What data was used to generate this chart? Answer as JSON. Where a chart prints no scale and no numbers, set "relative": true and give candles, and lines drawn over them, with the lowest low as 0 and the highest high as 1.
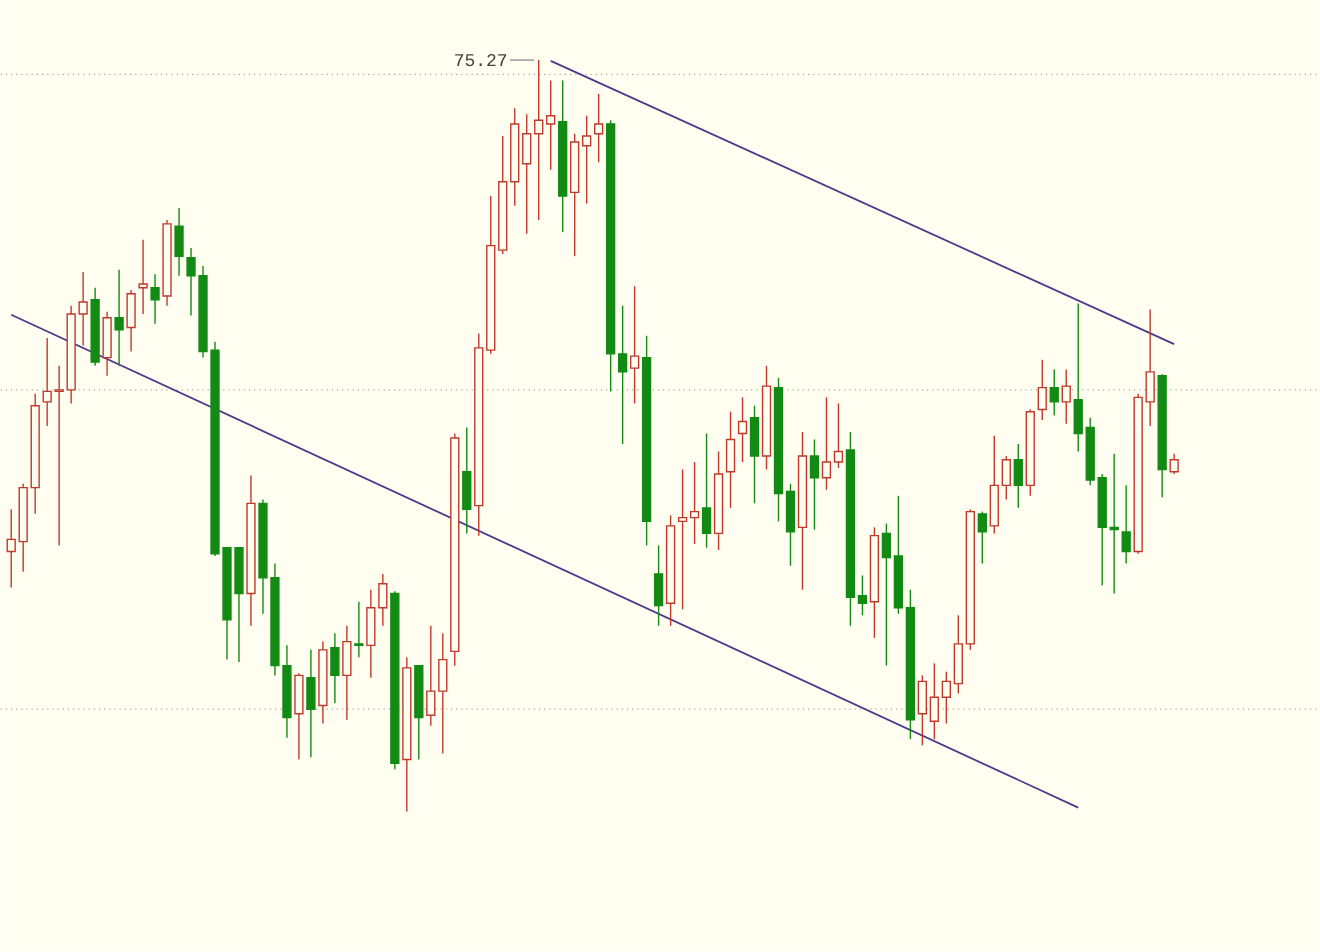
{
  "chart_data": {
    "type": "candlestick",
    "relative": true,
    "categories": [
      null,
      null,
      null,
      null,
      null,
      null,
      null,
      null,
      null,
      null,
      null,
      null,
      null,
      null,
      null,
      null,
      null,
      null,
      null,
      null,
      null,
      null,
      null,
      null,
      null,
      null,
      null,
      null,
      null,
      null,
      null,
      null,
      null,
      null,
      null,
      null,
      null,
      null,
      null,
      null,
      null,
      null,
      null,
      null,
      null,
      null,
      null,
      null,
      null,
      null,
      null,
      null,
      null,
      null,
      null,
      null,
      null,
      null,
      null,
      null,
      null,
      null,
      null,
      null,
      null,
      null,
      null,
      null,
      null,
      null,
      null,
      null,
      null,
      null,
      null,
      null,
      null,
      null,
      null,
      null,
      null,
      null,
      null,
      null,
      null,
      null,
      null,
      null,
      null,
      null,
      null,
      null,
      null,
      null,
      null,
      null,
      null,
      null
    ],
    "ohlc": [
      [
        0.346,
        0.402,
        0.298,
        0.362
      ],
      [
        0.359,
        0.436,
        0.319,
        0.431
      ],
      [
        0.431,
        0.556,
        0.396,
        0.54
      ],
      [
        0.545,
        0.63,
        0.513,
        0.559
      ],
      [
        0.559,
        0.593,
        0.354,
        0.561
      ],
      [
        0.561,
        0.673,
        0.543,
        0.662
      ],
      [
        0.662,
        0.718,
        0.62,
        0.678
      ],
      [
        0.681,
        0.697,
        0.593,
        0.598
      ],
      [
        0.604,
        0.665,
        0.58,
        0.657
      ],
      [
        0.657,
        0.721,
        0.593,
        0.641
      ],
      [
        0.644,
        0.694,
        0.612,
        0.689
      ],
      [
        0.697,
        0.761,
        0.662,
        0.702
      ],
      [
        0.697,
        0.715,
        0.649,
        0.681
      ],
      [
        0.686,
        0.787,
        0.673,
        0.782
      ],
      [
        0.779,
        0.803,
        0.713,
        0.739
      ],
      [
        0.737,
        0.75,
        0.66,
        0.713
      ],
      [
        0.713,
        0.726,
        0.604,
        0.612
      ],
      [
        0.614,
        0.625,
        0.34,
        0.343
      ],
      [
        0.351,
        0.351,
        0.202,
        0.255
      ],
      [
        0.351,
        0.351,
        0.199,
        0.29
      ],
      [
        0.29,
        0.447,
        0.247,
        0.41
      ],
      [
        0.41,
        0.415,
        0.263,
        0.311
      ],
      [
        0.311,
        0.33,
        0.181,
        0.194
      ],
      [
        0.194,
        0.221,
        0.098,
        0.125
      ],
      [
        0.13,
        0.184,
        0.069,
        0.181
      ],
      [
        0.178,
        0.215,
        0.072,
        0.136
      ],
      [
        0.141,
        0.226,
        0.117,
        0.215
      ],
      [
        0.218,
        0.237,
        0.144,
        0.181
      ],
      [
        0.181,
        0.247,
        0.122,
        0.226
      ],
      [
        0.223,
        0.279,
        0.205,
        0.221
      ],
      [
        0.221,
        0.295,
        0.178,
        0.271
      ],
      [
        0.271,
        0.316,
        0.247,
        0.303
      ],
      [
        0.29,
        0.293,
        0.056,
        0.064
      ],
      [
        0.069,
        0.205,
        0.0,
        0.191
      ],
      [
        0.194,
        0.194,
        0.069,
        0.125
      ],
      [
        0.128,
        0.247,
        0.114,
        0.16
      ],
      [
        0.16,
        0.237,
        0.077,
        0.202
      ],
      [
        0.213,
        0.503,
        0.194,
        0.497
      ],
      [
        0.452,
        0.511,
        0.37,
        0.402
      ],
      [
        0.407,
        0.636,
        0.367,
        0.617
      ],
      [
        0.614,
        0.819,
        0.609,
        0.753
      ],
      [
        0.747,
        0.899,
        0.742,
        0.838
      ],
      [
        0.838,
        0.936,
        0.806,
        0.915
      ],
      [
        0.862,
        0.928,
        0.769,
        0.902
      ],
      [
        0.902,
        1.0,
        0.787,
        0.92
      ],
      [
        0.915,
        0.973,
        0.854,
        0.926
      ],
      [
        0.918,
        0.973,
        0.771,
        0.819
      ],
      [
        0.824,
        0.902,
        0.739,
        0.891
      ],
      [
        0.886,
        0.926,
        0.809,
        0.899
      ],
      [
        0.902,
        0.955,
        0.864,
        0.915
      ],
      [
        0.915,
        0.92,
        0.559,
        0.609
      ],
      [
        0.609,
        0.673,
        0.489,
        0.585
      ],
      [
        0.59,
        0.699,
        0.543,
        0.606
      ],
      [
        0.604,
        0.633,
        0.354,
        0.386
      ],
      [
        0.316,
        0.354,
        0.247,
        0.274
      ],
      [
        0.277,
        0.394,
        0.247,
        0.38
      ],
      [
        0.386,
        0.455,
        0.269,
        0.391
      ],
      [
        0.391,
        0.465,
        0.356,
        0.399
      ],
      [
        0.404,
        0.503,
        0.351,
        0.37
      ],
      [
        0.37,
        0.479,
        0.348,
        0.449
      ],
      [
        0.452,
        0.532,
        0.404,
        0.495
      ],
      [
        0.503,
        0.551,
        0.465,
        0.519
      ],
      [
        0.524,
        0.54,
        0.41,
        0.473
      ],
      [
        0.473,
        0.593,
        0.455,
        0.566
      ],
      [
        0.564,
        0.577,
        0.386,
        0.423
      ],
      [
        0.426,
        0.436,
        0.327,
        0.372
      ],
      [
        0.378,
        0.505,
        0.295,
        0.473
      ],
      [
        0.473,
        0.495,
        0.375,
        0.444
      ],
      [
        0.444,
        0.551,
        0.428,
        0.465
      ],
      [
        0.465,
        0.543,
        0.457,
        0.479
      ],
      [
        0.481,
        0.505,
        0.247,
        0.285
      ],
      [
        0.287,
        0.314,
        0.261,
        0.277
      ],
      [
        0.279,
        0.378,
        0.231,
        0.367
      ],
      [
        0.37,
        0.383,
        0.194,
        0.338
      ],
      [
        0.34,
        0.42,
        0.263,
        0.271
      ],
      [
        0.271,
        0.295,
        0.096,
        0.122
      ],
      [
        0.13,
        0.181,
        0.088,
        0.173
      ],
      [
        0.12,
        0.197,
        0.096,
        0.152
      ],
      [
        0.152,
        0.186,
        0.117,
        0.173
      ],
      [
        0.17,
        0.261,
        0.157,
        0.223
      ],
      [
        0.223,
        0.402,
        0.215,
        0.399
      ],
      [
        0.396,
        0.399,
        0.33,
        0.372
      ],
      [
        0.38,
        0.5,
        0.37,
        0.434
      ],
      [
        0.434,
        0.473,
        0.415,
        0.468
      ],
      [
        0.468,
        0.489,
        0.404,
        0.434
      ],
      [
        0.434,
        0.535,
        0.42,
        0.532
      ],
      [
        0.535,
        0.601,
        0.521,
        0.564
      ],
      [
        0.564,
        0.588,
        0.527,
        0.545
      ],
      [
        0.545,
        0.588,
        0.516,
        0.566
      ],
      [
        0.548,
        0.676,
        0.479,
        0.503
      ],
      [
        0.511,
        0.524,
        0.434,
        0.441
      ],
      [
        0.444,
        0.449,
        0.301,
        0.378
      ],
      [
        0.378,
        0.476,
        0.29,
        0.375
      ],
      [
        0.372,
        0.434,
        0.33,
        0.346
      ],
      [
        0.346,
        0.556,
        0.343,
        0.551
      ],
      [
        0.545,
        0.668,
        0.513,
        0.585
      ],
      [
        0.58,
        0.582,
        0.418,
        0.455
      ],
      [
        0.452,
        0.476,
        0.449,
        0.468
      ]
    ],
    "colors": [
      "#c0392b",
      "#c0392b",
      "#c0392b",
      "#c0392b",
      "#c0392b",
      "#c0392b",
      "#c0392b",
      "#138a13",
      "#c0392b",
      "#138a13",
      "#c0392b",
      "#c0392b",
      "#138a13",
      "#c0392b",
      "#138a13",
      "#138a13",
      "#138a13",
      "#138a13",
      "#138a13",
      "#138a13",
      "#c0392b",
      "#138a13",
      "#138a13",
      "#138a13",
      "#c0392b",
      "#138a13",
      "#c0392b",
      "#138a13",
      "#c0392b",
      "#138a13",
      "#c0392b",
      "#c0392b",
      "#138a13",
      "#c0392b",
      "#138a13",
      "#c0392b",
      "#c0392b",
      "#c0392b",
      "#138a13",
      "#c0392b",
      "#c0392b",
      "#c0392b",
      "#c0392b",
      "#c0392b",
      "#c0392b",
      "#c0392b",
      "#138a13",
      "#c0392b",
      "#c0392b",
      "#c0392b",
      "#138a13",
      "#138a13",
      "#c0392b",
      "#138a13",
      "#138a13",
      "#c0392b",
      "#c0392b",
      "#c0392b",
      "#138a13",
      "#c0392b",
      "#c0392b",
      "#c0392b",
      "#138a13",
      "#c0392b",
      "#138a13",
      "#138a13",
      "#c0392b",
      "#138a13",
      "#c0392b",
      "#c0392b",
      "#138a13",
      "#138a13",
      "#c0392b",
      "#138a13",
      "#138a13",
      "#138a13",
      "#c0392b",
      "#c0392b",
      "#c0392b",
      "#c0392b",
      "#c0392b",
      "#138a13",
      "#c0392b",
      "#c0392b",
      "#138a13",
      "#c0392b",
      "#c0392b",
      "#138a13",
      "#c0392b",
      "#138a13",
      "#138a13",
      "#138a13",
      "#138a13",
      "#138a13",
      "#c0392b",
      "#c0392b",
      "#138a13",
      "#c0392b"
    ],
    "series": [
      {
        "type": "line",
        "color": "#4b3a8c",
        "values": [
          null,
          null,
          null,
          null,
          null,
          null,
          null,
          null,
          null,
          null,
          null,
          null,
          null,
          null,
          null,
          null,
          null,
          null,
          null,
          null,
          null,
          null,
          null,
          null,
          null,
          null,
          null,
          null,
          null,
          null,
          null,
          null,
          null,
          null,
          null,
          null,
          null,
          null,
          null,
          null,
          null,
          null,
          null,
          null,
          null,
          0.999,
          null,
          null,
          null,
          null,
          null,
          null,
          null,
          null,
          null,
          null,
          null,
          null,
          null,
          null,
          null,
          null,
          null,
          null,
          null,
          null,
          null,
          null,
          null,
          null,
          null,
          null,
          null,
          null,
          null,
          null,
          null,
          null,
          null,
          null,
          null,
          null,
          null,
          null,
          null,
          null,
          null,
          null,
          null,
          null,
          null,
          null,
          null,
          null,
          null,
          null,
          null,
          0.622
        ]
      },
      {
        "type": "line",
        "color": "#4b3a8c",
        "values": [
          0.661,
          null,
          null,
          null,
          null,
          null,
          null,
          null,
          null,
          null,
          null,
          null,
          null,
          null,
          null,
          null,
          null,
          null,
          null,
          null,
          null,
          null,
          null,
          null,
          null,
          null,
          null,
          null,
          null,
          null,
          null,
          null,
          null,
          null,
          null,
          null,
          null,
          null,
          null,
          null,
          null,
          null,
          null,
          null,
          null,
          null,
          null,
          null,
          null,
          null,
          null,
          null,
          null,
          null,
          null,
          null,
          null,
          null,
          null,
          null,
          null,
          null,
          null,
          null,
          null,
          null,
          null,
          null,
          null,
          null,
          null,
          null,
          null,
          null,
          null,
          null,
          null,
          null,
          null,
          null,
          null,
          null,
          null,
          null,
          null,
          null,
          null,
          null,
          null,
          0.005,
          null,
          null,
          null,
          null,
          null,
          null,
          null,
          null
        ]
      }
    ],
    "ref_lines": [
      {
        "axis": "y",
        "value": 0.981,
        "color": "#a8a8a0",
        "line_style": "dotted"
      },
      {
        "axis": "y",
        "value": 0.561,
        "color": "#a8a8a0",
        "line_style": "dotted"
      },
      {
        "axis": "y",
        "value": 0.136,
        "color": "#a8a8a0",
        "line_style": "dotted"
      }
    ],
    "annotations": [
      "75.27"
    ]
  }
}
